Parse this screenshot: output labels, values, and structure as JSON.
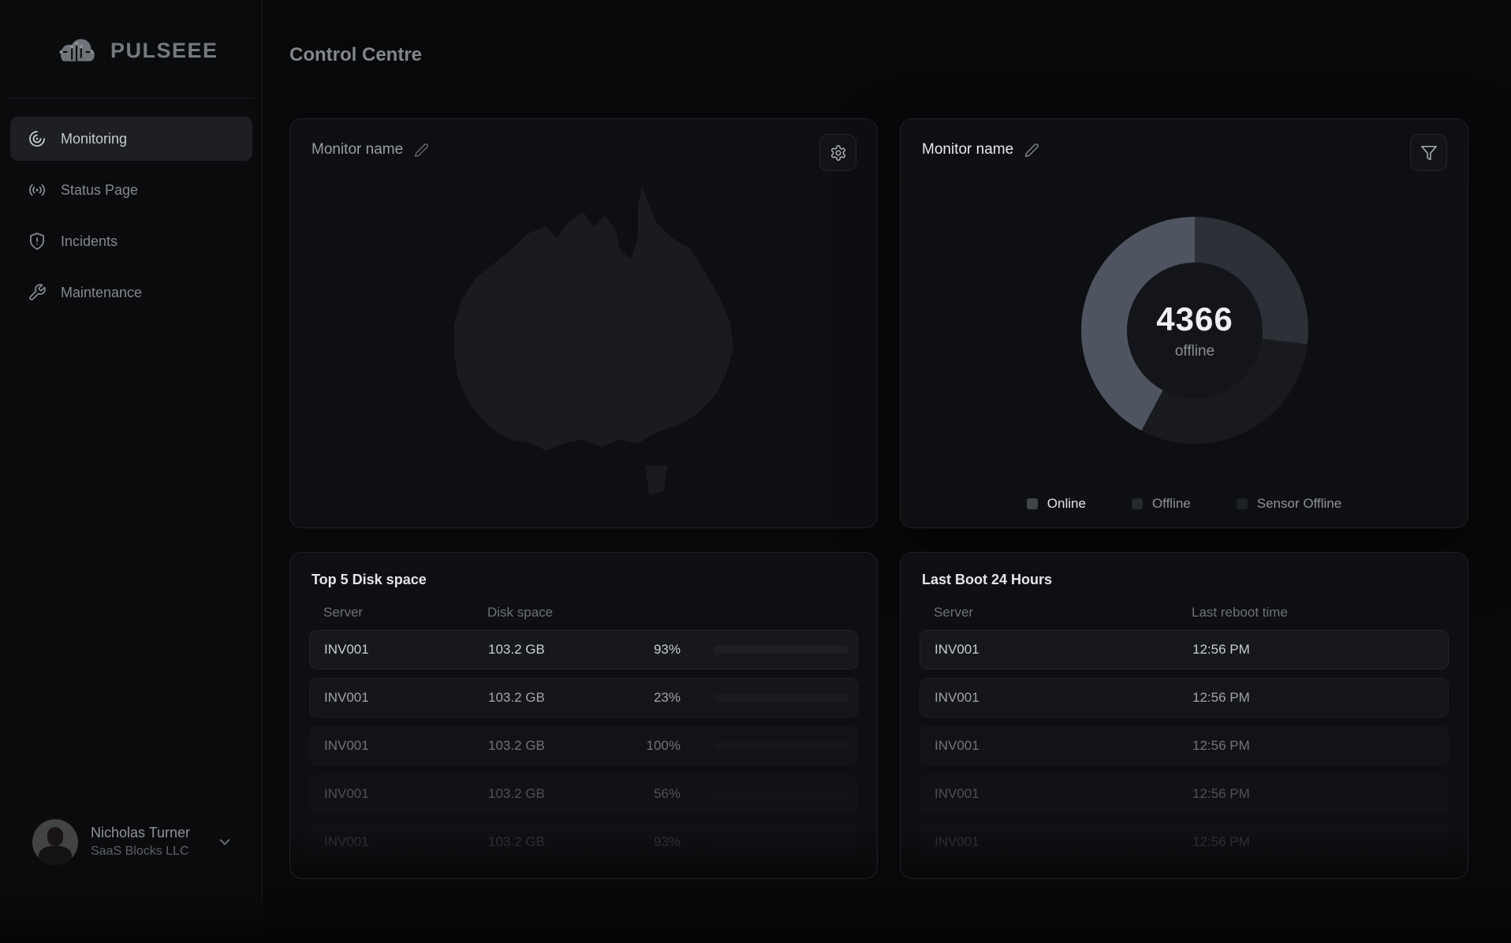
{
  "app": {
    "logo_text": "PULSEEE",
    "page_title": "Control Centre"
  },
  "sidebar": {
    "items": [
      {
        "label": "Monitoring",
        "active": true
      },
      {
        "label": "Status Page",
        "active": false
      },
      {
        "label": "Incidents",
        "active": false
      },
      {
        "label": "Maintenance",
        "active": false
      }
    ],
    "user": {
      "name": "Nicholas Turner",
      "company": "SaaS Blocks LLC"
    }
  },
  "cards": {
    "map": {
      "title": "Monitor name"
    },
    "status": {
      "title": "Monitor name"
    },
    "disk": {
      "title": "Top 5 Disk space",
      "columns": {
        "server": "Server",
        "disk": "Disk space"
      },
      "rows": [
        {
          "server": "INV001",
          "disk": "103.2 GB",
          "percent": "93%",
          "value": 93
        },
        {
          "server": "INV001",
          "disk": "103.2 GB",
          "percent": "23%",
          "value": 23
        },
        {
          "server": "INV001",
          "disk": "103.2 GB",
          "percent": "100%",
          "value": 100
        },
        {
          "server": "INV001",
          "disk": "103.2 GB",
          "percent": "56%",
          "value": 56
        },
        {
          "server": "INV001",
          "disk": "103.2 GB",
          "percent": "93%",
          "value": 93
        }
      ]
    },
    "boot": {
      "title": "Last Boot 24 Hours",
      "columns": {
        "server": "Server",
        "time": "Last reboot time"
      },
      "rows": [
        {
          "server": "INV001",
          "time": "12:56 PM"
        },
        {
          "server": "INV001",
          "time": "12:56 PM"
        },
        {
          "server": "INV001",
          "time": "12:56 PM"
        },
        {
          "server": "INV001",
          "time": "12:56 PM"
        },
        {
          "server": "INV001",
          "time": "12:56 PM"
        }
      ]
    }
  },
  "chart_data": {
    "type": "pie",
    "variant": "donut",
    "title": "Monitor name",
    "center_value": "4366",
    "center_label": "offline",
    "start": "12 o'clock, clockwise",
    "segments": [
      {
        "label": "Offline",
        "angle_deg": 97,
        "percent": 27,
        "color": "#2c3037"
      },
      {
        "label": "Sensor Offline",
        "angle_deg": 111,
        "percent": 31,
        "color": "#181a1e"
      },
      {
        "label": "Online",
        "angle_deg": 152,
        "percent": 42,
        "color": "#4e5560"
      }
    ],
    "legend_position": "bottom",
    "legend": [
      {
        "label": "Online",
        "color": "#3f454d"
      },
      {
        "label": "Offline",
        "color": "#26292e"
      },
      {
        "label": "Sensor Offline",
        "color": "#1d2024"
      }
    ]
  }
}
